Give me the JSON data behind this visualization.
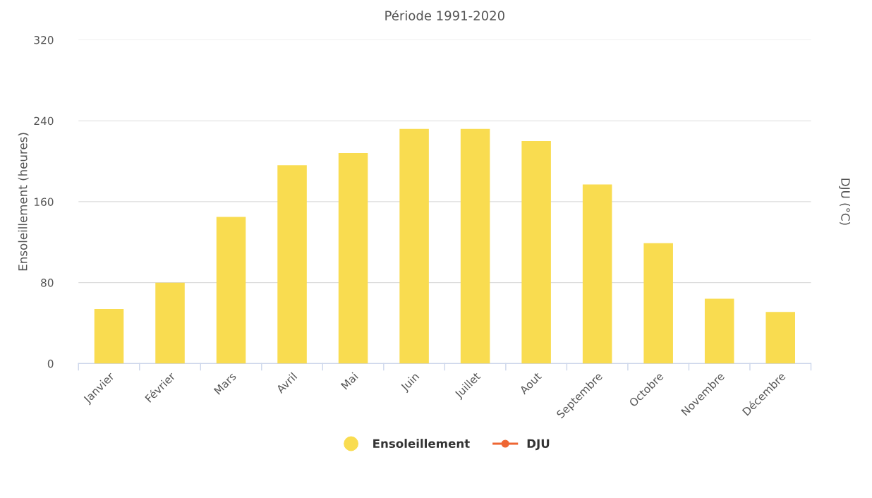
{
  "chart_data": {
    "type": "bar",
    "title": "Période 1991-2020",
    "ylabel": "Ensoleillement (heures)",
    "y2label": "DJU (°C)",
    "categories": [
      "Janvier",
      "Février",
      "Mars",
      "Avril",
      "Mai",
      "Juin",
      "Juillet",
      "Aout",
      "Septembre",
      "Octobre",
      "Novembre",
      "Décembre"
    ],
    "series": [
      {
        "name": "Ensoleillement",
        "color": "#f9dc50",
        "values": [
          54,
          80,
          145,
          196,
          208,
          232,
          232,
          220,
          177,
          119,
          64,
          51
        ]
      },
      {
        "name": "DJU",
        "type": "line",
        "color": "#ee6633",
        "values": [
          null,
          null,
          null,
          null,
          null,
          null,
          null,
          null,
          null,
          null,
          null,
          null
        ]
      }
    ],
    "ylim": [
      0,
      320
    ],
    "yticks": [
      0,
      80,
      160,
      240,
      320
    ],
    "grid": "y",
    "legend": "bottom",
    "marker": "circle"
  }
}
